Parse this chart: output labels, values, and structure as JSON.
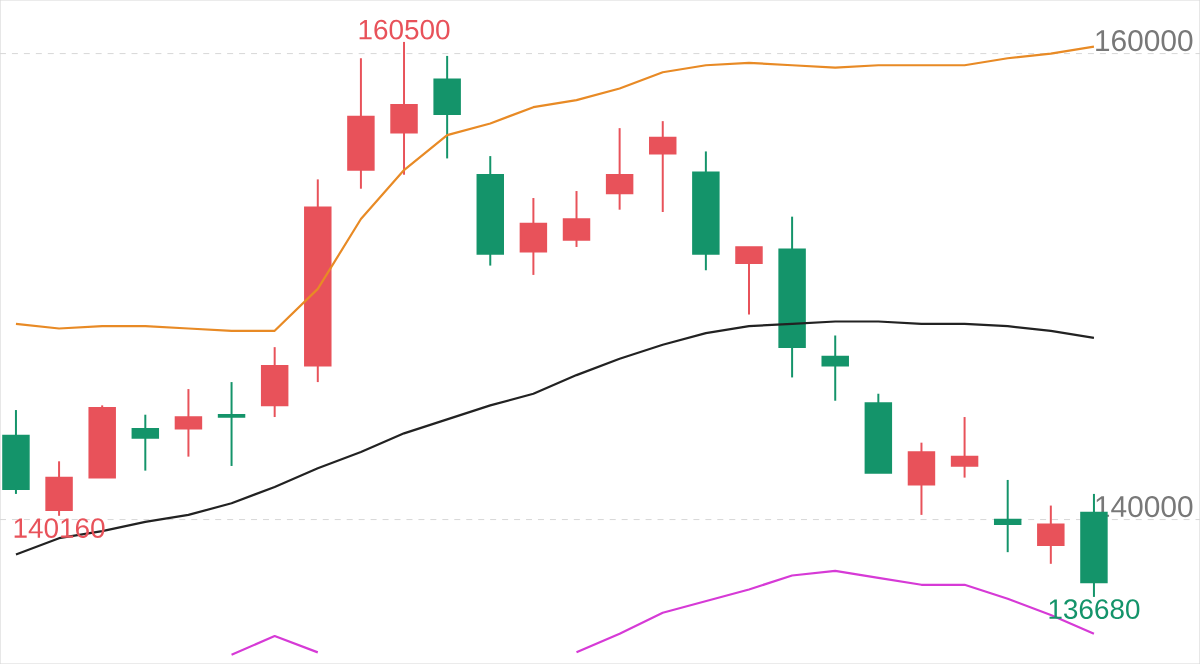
{
  "chart_data": {
    "type": "candlestick",
    "categories": [
      null,
      null,
      null,
      null,
      null,
      null,
      null,
      null,
      null,
      null,
      null,
      null,
      null,
      null,
      null,
      null,
      null,
      null,
      null,
      null,
      null,
      null,
      null,
      null,
      null,
      null
    ],
    "ohlc": [
      [
        143600,
        144700,
        141100,
        141300
      ],
      [
        140400,
        142500,
        140160,
        141800
      ],
      [
        141800,
        144900,
        141800,
        144800
      ],
      [
        143900,
        144500,
        142100,
        143500
      ],
      [
        143900,
        145600,
        142700,
        144400
      ],
      [
        144500,
        145900,
        142300,
        144400
      ],
      [
        144900,
        147400,
        144400,
        146600
      ],
      [
        146600,
        154600,
        145900,
        153400
      ],
      [
        155000,
        159800,
        154200,
        157300
      ],
      [
        156600,
        160500,
        154800,
        157800
      ],
      [
        158900,
        159900,
        155500,
        157400
      ],
      [
        154800,
        155600,
        150900,
        151400
      ],
      [
        151500,
        153800,
        150500,
        152700
      ],
      [
        152000,
        154100,
        151700,
        152900
      ],
      [
        154000,
        156800,
        153300,
        154800
      ],
      [
        155700,
        157100,
        153200,
        156400
      ],
      [
        154900,
        155800,
        150700,
        151400
      ],
      [
        151000,
        151700,
        148800,
        151700
      ],
      [
        151600,
        153000,
        146100,
        147400
      ],
      [
        147000,
        147900,
        145100,
        146600
      ],
      [
        145000,
        145400,
        142000,
        142000
      ],
      [
        141500,
        143300,
        140200,
        142900
      ],
      [
        142300,
        144400,
        141800,
        142700
      ],
      [
        140000,
        141700,
        138600,
        139800
      ],
      [
        138900,
        140600,
        138100,
        139800
      ],
      [
        140300,
        141100,
        136680,
        137300
      ]
    ],
    "colors": [
      "#14946a",
      "#e8525a",
      "#e8525a",
      "#14946a",
      "#e8525a",
      "#14946a",
      "#e8525a",
      "#e8525a",
      "#e8525a",
      "#e8525a",
      "#14946a",
      "#14946a",
      "#e8525a",
      "#e8525a",
      "#e8525a",
      "#e8525a",
      "#14946a",
      "#e8525a",
      "#14946a",
      "#14946a",
      "#14946a",
      "#e8525a",
      "#e8525a",
      "#14946a",
      "#e8525a",
      "#14946a"
    ],
    "series": [
      {
        "type": "line",
        "color": "#e88a25",
        "values": [
          148400,
          148200,
          148300,
          148300,
          148200,
          148100,
          148100,
          149900,
          152900,
          155000,
          156500,
          157000,
          157700,
          158000,
          158500,
          159200,
          159500,
          159600,
          159500,
          159400,
          159500,
          159500,
          159500,
          159800,
          160000,
          160300
        ]
      },
      {
        "type": "line",
        "color": "#222222",
        "values": [
          138500,
          139200,
          139500,
          139900,
          140200,
          140700,
          141400,
          142200,
          142900,
          143700,
          144300,
          144900,
          145400,
          146200,
          146900,
          147500,
          148000,
          148300,
          148400,
          148500,
          148500,
          148400,
          148400,
          148300,
          148100,
          147800
        ]
      },
      {
        "type": "line",
        "color": "#d63ad6",
        "values": [
          null,
          null,
          null,
          null,
          null,
          134200,
          135000,
          134300,
          null,
          null,
          null,
          null,
          null,
          134300,
          135100,
          136000,
          136500,
          137000,
          137600,
          137800,
          137500,
          137200,
          137200,
          136600,
          135900,
          135100
        ]
      }
    ],
    "ylim": [
      133800,
      162300
    ],
    "yticks": [
      140000,
      160000
    ],
    "grid": "y",
    "annotations": [
      {
        "text": "160500",
        "y": 160500
      },
      {
        "text": "140160",
        "y": 140160
      },
      {
        "text": "136680",
        "y": 136680
      }
    ]
  }
}
